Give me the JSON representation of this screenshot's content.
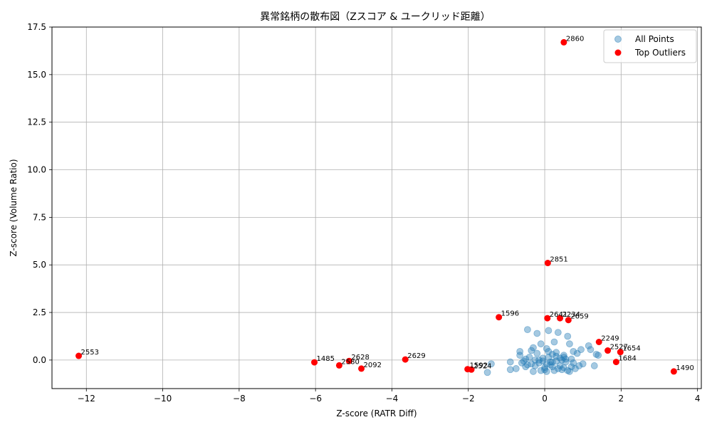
{
  "chart_data": {
    "type": "scatter",
    "title": "異常銘柄の散布図（Zスコア & ユークリッド距離）",
    "xlabel": "Z-score (RATR Diff)",
    "ylabel": "Z-score (Volume Ratio)",
    "xlim": [
      -12.9,
      4.1
    ],
    "ylim": [
      -1.5,
      17.5
    ],
    "xticks": [
      -12,
      -10,
      -8,
      -6,
      -4,
      -2,
      0,
      2,
      4
    ],
    "yticks": [
      0.0,
      2.5,
      5.0,
      7.5,
      10.0,
      12.5,
      15.0,
      17.5
    ],
    "xtick_labels": [
      "−12",
      "−10",
      "−8",
      "−6",
      "−4",
      "−2",
      "0",
      "2",
      "4"
    ],
    "ytick_labels": [
      "0.0",
      "2.5",
      "5.0",
      "7.5",
      "10.0",
      "12.5",
      "15.0",
      "17.5"
    ],
    "grid": true,
    "legend_position": "top-right",
    "series": [
      {
        "name": "All Points",
        "color": "#1f77b4",
        "marker": "circle-translucent",
        "x": [
          -0.45,
          0.1,
          0.35,
          -0.2,
          0.6,
          0.25,
          0.65,
          -0.1,
          -0.3,
          0.05,
          1.15,
          1.2,
          0.95,
          0.75,
          0.85,
          1.35,
          1.4,
          -0.65,
          -0.65,
          -0.9,
          -0.9,
          -0.75,
          -0.5,
          -0.25,
          0.0,
          0.2,
          0.4,
          0.5,
          0.7,
          0.9,
          1.0,
          -0.35,
          -0.15,
          0.15,
          0.3,
          0.45,
          0.55,
          -0.55,
          -0.05,
          0.1,
          0.3,
          0.5,
          -0.4,
          0.2,
          -0.2,
          0.0,
          0.6,
          0.8,
          -0.3,
          -0.1,
          0.05,
          0.25,
          0.45,
          0.65,
          0.35,
          -0.45,
          0.15,
          -0.25,
          0.55,
          0.75,
          -1.5,
          -1.4,
          -0.05,
          -0.6,
          1.3,
          0.1,
          -0.15,
          0.4,
          0.3,
          -0.35,
          0.05,
          0.2,
          0.5,
          -0.5,
          0.7
        ],
        "y": [
          1.6,
          1.55,
          1.45,
          1.4,
          1.25,
          0.95,
          0.85,
          0.85,
          0.65,
          0.6,
          0.75,
          0.55,
          0.55,
          0.45,
          0.35,
          0.3,
          0.25,
          0.45,
          0.25,
          -0.1,
          -0.5,
          -0.45,
          -0.35,
          -0.3,
          -0.4,
          -0.35,
          -0.3,
          -0.4,
          -0.35,
          -0.3,
          -0.2,
          -0.2,
          -0.15,
          -0.1,
          -0.05,
          0.0,
          0.05,
          -0.05,
          0.1,
          0.15,
          0.2,
          0.25,
          0.15,
          0.3,
          0.35,
          -0.5,
          -0.55,
          -0.45,
          -0.6,
          -0.55,
          -0.6,
          -0.55,
          -0.5,
          -0.6,
          -0.45,
          -0.25,
          -0.25,
          0.0,
          -0.1,
          -0.15,
          -0.65,
          -0.2,
          -0.05,
          -0.15,
          -0.3,
          0.45,
          0.0,
          0.1,
          0.4,
          0.5,
          -0.2,
          -0.1,
          0.15,
          0.05,
          0.05
        ]
      },
      {
        "name": "Top Outliers",
        "color": "#ff0000",
        "marker": "circle",
        "points": [
          {
            "id": "2860",
            "x": 0.5,
            "y": 16.7
          },
          {
            "id": "2851",
            "x": 0.08,
            "y": 5.1
          },
          {
            "id": "1596",
            "x": -1.2,
            "y": 2.25
          },
          {
            "id": "2641",
            "x": 0.07,
            "y": 2.2
          },
          {
            "id": "2234",
            "x": 0.4,
            "y": 2.2
          },
          {
            "id": "2659",
            "x": 0.62,
            "y": 2.1
          },
          {
            "id": "2249",
            "x": 1.42,
            "y": 0.95
          },
          {
            "id": "2527",
            "x": 1.65,
            "y": 0.5
          },
          {
            "id": "1654",
            "x": 1.98,
            "y": 0.42
          },
          {
            "id": "1684",
            "x": 1.87,
            "y": -0.1
          },
          {
            "id": "1490",
            "x": 3.38,
            "y": -0.6
          },
          {
            "id": "2553",
            "x": -12.2,
            "y": 0.22
          },
          {
            "id": "1485",
            "x": -6.03,
            "y": -0.12
          },
          {
            "id": "2628",
            "x": -5.12,
            "y": -0.05
          },
          {
            "id": "2580",
            "x": -5.38,
            "y": -0.28
          },
          {
            "id": "2092",
            "x": -4.8,
            "y": -0.45
          },
          {
            "id": "2629",
            "x": -3.65,
            "y": 0.03
          },
          {
            "id": "1592",
            "x": -2.02,
            "y": -0.48
          },
          {
            "id": "2524",
            "x": -1.92,
            "y": -0.5
          }
        ]
      }
    ]
  }
}
